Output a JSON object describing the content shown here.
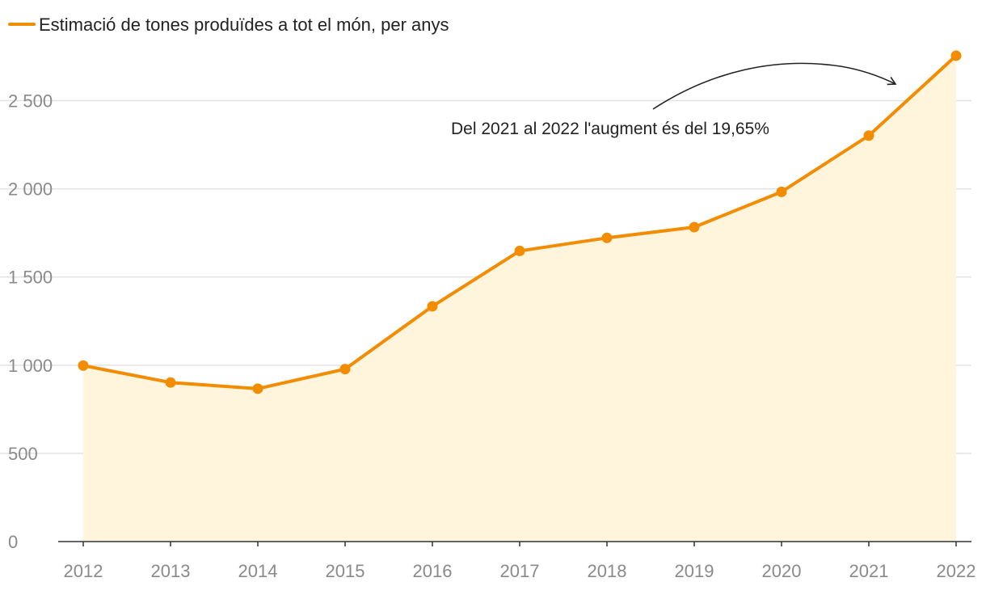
{
  "colors": {
    "line": "#f28c00",
    "area": "#fff4dc",
    "grid": "#e3e3e3",
    "axis": "#333333",
    "tick_text": "#8a8a8a",
    "annotation": "#222222"
  },
  "chart_data": {
    "type": "area",
    "title": "",
    "legend_label": "Estimació de tones produïdes a tot el món, per anys",
    "legend_position": "top-left",
    "categories": [
      "2012",
      "2013",
      "2014",
      "2015",
      "2016",
      "2017",
      "2018",
      "2019",
      "2020",
      "2021",
      "2022"
    ],
    "series": [
      {
        "name": "Estimació de tones produïdes a tot el món, per anys",
        "values": [
          998,
          902,
          867,
          978,
          1334,
          1648,
          1722,
          1783,
          1983,
          2302,
          2755
        ]
      }
    ],
    "ylim": [
      0,
      2750
    ],
    "yticks": [
      0,
      500,
      1000,
      1500,
      2000,
      2500
    ],
    "ytick_labels": [
      "0",
      "500",
      "1 000",
      "1 500",
      "2 000",
      "2 500"
    ],
    "grid": true,
    "annotation": "Del 2021 al 2022 l'augment és del 19,65%"
  }
}
